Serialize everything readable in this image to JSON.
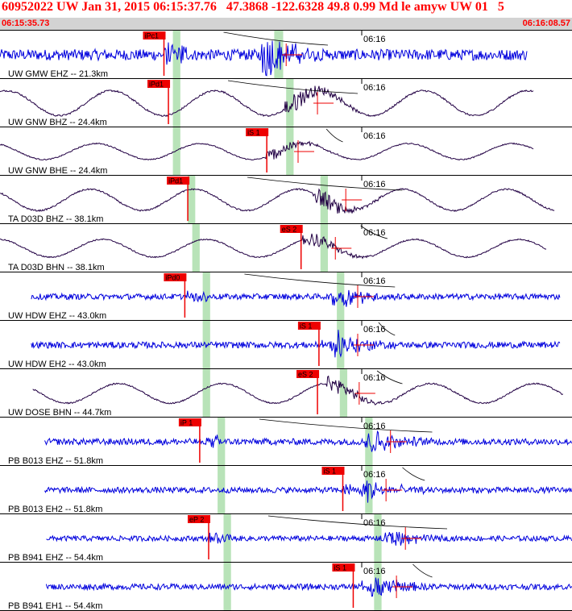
{
  "header": {
    "title": "60952022 UW Jan 31, 2015 06:15:37.76   47.3868 -122.6328 49.8 0.99 Md le amyw UW 01   5",
    "time_start": "06:15:35.73",
    "time_end": "06:16:08.57"
  },
  "colors": {
    "blue_trace": "#0000dd",
    "dark_trace": "#220044",
    "pick": "#ee0000",
    "window": "#b8e3b8"
  },
  "chart_data": {
    "type": "line",
    "title": "60952022 UW Jan 31, 2015 06:15:37.76   47.3868 -122.6328 49.8 0.99 Md le amyw UW 01   5",
    "x_unit": "time",
    "xlim": [
      "06:15:35.73",
      "06:16:08.57"
    ],
    "minute_tick_label": "06:16",
    "channels": [
      {
        "label": "UW GMW EHZ -- 21.3km",
        "trace": "blue",
        "kind": "spike",
        "pick": "iPc1",
        "pick_s": 11.0,
        "arrival_s": 18.0,
        "event_end_s": 22.0,
        "t_start": 0.0,
        "t_end": 35.4,
        "window_s": [
          11.6,
          12.1
        ],
        "window2_s": [
          18.4,
          19.0
        ],
        "amp": 0.95
      },
      {
        "label": "UW GNW BHZ -- 24.4km",
        "trace": "dark",
        "kind": "wave",
        "pick": "iPd1",
        "pick_s": 11.3,
        "arrival_s": 20.1,
        "event_end_s": 24.0,
        "t_start": 0.0,
        "t_end": 35.8,
        "window_s": [
          11.6,
          12.1
        ],
        "window2_s": [
          19.2,
          19.7
        ],
        "amp": 0.7
      },
      {
        "label": "UW GNW BHE -- 24.4km",
        "trace": "dark",
        "kind": "wave",
        "pick": "iS 1",
        "pick_s": 17.9,
        "arrival_s": 18.8,
        "event_end_s": 23.0,
        "t_start": 0.0,
        "t_end": 35.8,
        "window_s": [
          11.6,
          12.1
        ],
        "window2_s": [
          19.2,
          19.7
        ],
        "amp": 0.45
      },
      {
        "label": "TA D03D BHZ -- 38.1km",
        "trace": "dark",
        "kind": "wave",
        "pick": "iPd1",
        "pick_s": 12.6,
        "arrival_s": 22.0,
        "event_end_s": 27.0,
        "t_start": 0.0,
        "t_end": 37.2,
        "window_s": [
          12.6,
          13.1
        ],
        "window2_s": [
          21.5,
          22.0
        ],
        "amp": 0.6
      },
      {
        "label": "TA D03D BHN -- 38.1km",
        "trace": "dark",
        "kind": "wave",
        "pick": "eS 2",
        "pick_s": 20.2,
        "arrival_s": 21.3,
        "event_end_s": 26.0,
        "t_start": 0.0,
        "t_end": 36.7,
        "window_s": [
          12.9,
          13.4
        ],
        "window2_s": [
          21.5,
          22.0
        ],
        "amp": 0.5
      },
      {
        "label": "UW HDW EHZ -- 43.0km",
        "trace": "blue",
        "kind": "spike",
        "pick": "iPd0",
        "pick_s": 12.4,
        "arrival_s": 22.8,
        "event_end_s": 26.5,
        "t_start": 2.1,
        "t_end": 37.6,
        "window_s": [
          13.6,
          14.1
        ],
        "window2_s": [
          22.6,
          23.1
        ],
        "amp": 0.5
      },
      {
        "label": "UW HDW EH2 -- 43.0km",
        "trace": "blue",
        "kind": "spike",
        "pick": "iS 1",
        "pick_s": 21.4,
        "arrival_s": 22.8,
        "event_end_s": 26.5,
        "t_start": 2.1,
        "t_end": 37.6,
        "window_s": [
          13.6,
          14.1
        ],
        "window2_s": [
          22.6,
          23.1
        ],
        "amp": 0.55
      },
      {
        "label": "UW DOSE BHN -- 44.7km",
        "trace": "dark",
        "kind": "wave",
        "pick": "eS 2",
        "pick_s": 21.3,
        "arrival_s": 22.9,
        "event_end_s": 27.0,
        "t_start": 2.2,
        "t_end": 37.8,
        "window_s": [
          13.6,
          14.1
        ],
        "window2_s": [
          22.8,
          23.3
        ],
        "amp": 0.55
      },
      {
        "label": "PB B013 EHZ -- 51.8km",
        "trace": "blue",
        "kind": "spike",
        "pick": "iP 1",
        "pick_s": 13.4,
        "arrival_s": 25.0,
        "event_end_s": 29.0,
        "t_start": 3.0,
        "t_end": 38.4,
        "window_s": [
          14.6,
          15.1
        ],
        "window2_s": [
          24.5,
          25.0
        ],
        "amp": 0.55
      },
      {
        "label": "PB B013 EH2 -- 51.8km",
        "trace": "blue",
        "kind": "spike",
        "pick": "iS 1",
        "pick_s": 23.0,
        "arrival_s": 24.7,
        "event_end_s": 28.5,
        "t_start": 3.0,
        "t_end": 38.4,
        "window_s": [
          14.6,
          15.1
        ],
        "window2_s": [
          24.5,
          25.0
        ],
        "amp": 0.5
      },
      {
        "label": "PB B941 EHZ -- 54.4km",
        "trace": "blue",
        "kind": "spike",
        "pick": "eP 2",
        "pick_s": 14.0,
        "arrival_s": 26.0,
        "event_end_s": 30.0,
        "t_start": 3.1,
        "t_end": 38.6,
        "window_s": [
          15.0,
          15.5
        ],
        "window2_s": [
          25.1,
          25.6
        ],
        "amp": 0.45
      },
      {
        "label": "PB B941 EH1 -- 54.4km",
        "trace": "blue",
        "kind": "spike",
        "pick": "iS 1",
        "pick_s": 23.7,
        "arrival_s": 25.4,
        "event_end_s": 29.0,
        "t_start": 3.1,
        "t_end": 38.6,
        "window_s": [
          15.0,
          15.5
        ],
        "window2_s": [
          25.1,
          25.6
        ],
        "amp": 0.5
      }
    ]
  }
}
